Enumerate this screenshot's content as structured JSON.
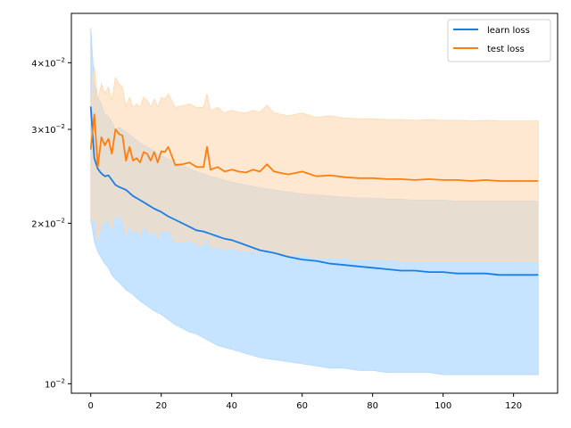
{
  "chart_data": {
    "type": "line",
    "title": "",
    "xlabel": "",
    "ylabel": "",
    "xlim": [
      -5.5,
      132.5
    ],
    "ylim": [
      0.0096,
      0.0495
    ],
    "yscale": "log",
    "grid": false,
    "legend_position": "top-right",
    "xticks": [
      0,
      20,
      40,
      60,
      80,
      100,
      120
    ],
    "xtick_labels": [
      "0",
      "20",
      "40",
      "60",
      "80",
      "100",
      "120"
    ],
    "yticks": [
      0.01,
      0.02,
      0.03,
      0.04
    ],
    "ytick_base": [
      "10",
      "2×10",
      "3×10",
      "4×10"
    ],
    "ytick_exp": [
      "−2",
      "−2",
      "−2",
      "−2"
    ],
    "series": [
      {
        "name": "learn loss",
        "color": "#1f77b4",
        "line_color": "#1a7ee6",
        "band_color": "#b3d9ff",
        "x": [
          0,
          1,
          2,
          3,
          4,
          5,
          6,
          7,
          8,
          10,
          12,
          14,
          16,
          18,
          20,
          22,
          24,
          26,
          28,
          30,
          32,
          34,
          36,
          38,
          40,
          44,
          48,
          52,
          56,
          60,
          64,
          68,
          72,
          76,
          80,
          84,
          88,
          92,
          96,
          100,
          104,
          108,
          112,
          116,
          120,
          124,
          127
        ],
        "y": [
          0.0331,
          0.0265,
          0.0253,
          0.0248,
          0.0245,
          0.0246,
          0.0241,
          0.0236,
          0.0234,
          0.0231,
          0.0225,
          0.0221,
          0.0217,
          0.0213,
          0.021,
          0.0206,
          0.0203,
          0.02,
          0.0197,
          0.0194,
          0.0193,
          0.0191,
          0.0189,
          0.0187,
          0.0186,
          0.0182,
          0.0178,
          0.0176,
          0.0173,
          0.0171,
          0.017,
          0.0168,
          0.0167,
          0.0166,
          0.0165,
          0.0164,
          0.0163,
          0.0163,
          0.0162,
          0.0162,
          0.0161,
          0.0161,
          0.0161,
          0.016,
          0.016,
          0.016,
          0.016
        ],
        "y_low": [
          0.0205,
          0.0185,
          0.0177,
          0.0172,
          0.0168,
          0.0165,
          0.016,
          0.0157,
          0.0155,
          0.015,
          0.0147,
          0.0143,
          0.014,
          0.0137,
          0.0135,
          0.0132,
          0.0129,
          0.0127,
          0.0125,
          0.0124,
          0.0122,
          0.012,
          0.0118,
          0.0117,
          0.0116,
          0.0114,
          0.0112,
          0.0111,
          0.011,
          0.0109,
          0.0108,
          0.0107,
          0.0107,
          0.0106,
          0.0106,
          0.0105,
          0.0105,
          0.0105,
          0.0105,
          0.0104,
          0.0104,
          0.0104,
          0.0104,
          0.0104,
          0.0104,
          0.0104,
          0.0104
        ],
        "y_high": [
          0.0465,
          0.0365,
          0.0345,
          0.0335,
          0.032,
          0.0318,
          0.031,
          0.03,
          0.0303,
          0.0297,
          0.029,
          0.0283,
          0.0278,
          0.0273,
          0.0268,
          0.0264,
          0.026,
          0.0257,
          0.0253,
          0.025,
          0.0248,
          0.0245,
          0.0243,
          0.0241,
          0.0239,
          0.0236,
          0.0233,
          0.0231,
          0.0229,
          0.0227,
          0.0226,
          0.0225,
          0.0224,
          0.0223,
          0.0223,
          0.0222,
          0.0222,
          0.0221,
          0.0221,
          0.0221,
          0.022,
          0.022,
          0.022,
          0.022,
          0.022,
          0.022,
          0.022
        ]
      },
      {
        "name": "test loss",
        "color": "#ff7f0e",
        "line_color": "#ff7f0e",
        "band_color": "#ffd9b3",
        "x": [
          0,
          1,
          2,
          3,
          4,
          5,
          6,
          7,
          8,
          9,
          10,
          11,
          12,
          13,
          14,
          15,
          16,
          17,
          18,
          19,
          20,
          21,
          22,
          24,
          26,
          28,
          30,
          32,
          33,
          34,
          36,
          38,
          40,
          42,
          44,
          46,
          48,
          50,
          52,
          56,
          60,
          64,
          68,
          72,
          76,
          80,
          84,
          88,
          92,
          96,
          100,
          104,
          108,
          112,
          116,
          120,
          124,
          127
        ],
        "y": [
          0.0275,
          0.032,
          0.0255,
          0.029,
          0.028,
          0.0288,
          0.027,
          0.03,
          0.0294,
          0.0292,
          0.0262,
          0.0278,
          0.0262,
          0.0265,
          0.026,
          0.0272,
          0.027,
          0.0262,
          0.0272,
          0.026,
          0.0273,
          0.0272,
          0.0278,
          0.0257,
          0.0258,
          0.026,
          0.0255,
          0.0255,
          0.0278,
          0.0252,
          0.0255,
          0.025,
          0.0252,
          0.025,
          0.0249,
          0.0252,
          0.025,
          0.0258,
          0.025,
          0.0247,
          0.025,
          0.0245,
          0.0246,
          0.0244,
          0.0243,
          0.0243,
          0.0242,
          0.0242,
          0.0241,
          0.0242,
          0.0241,
          0.0241,
          0.024,
          0.0241,
          0.024,
          0.024,
          0.024,
          0.024
        ],
        "y_low": [
          0.02,
          0.021,
          0.0185,
          0.02,
          0.02,
          0.0205,
          0.0195,
          0.021,
          0.0205,
          0.0205,
          0.019,
          0.02,
          0.0192,
          0.0195,
          0.019,
          0.0197,
          0.0195,
          0.019,
          0.0195,
          0.0188,
          0.0195,
          0.0193,
          0.0195,
          0.0185,
          0.0185,
          0.0186,
          0.0183,
          0.0182,
          0.019,
          0.018,
          0.0181,
          0.0178,
          0.018,
          0.0178,
          0.0177,
          0.0178,
          0.0176,
          0.018,
          0.0175,
          0.0174,
          0.0175,
          0.0172,
          0.0173,
          0.0172,
          0.0171,
          0.0171,
          0.0171,
          0.017,
          0.017,
          0.017,
          0.017,
          0.017,
          0.017,
          0.017,
          0.017,
          0.017,
          0.017,
          0.017
        ],
        "y_high": [
          0.033,
          0.0395,
          0.034,
          0.0365,
          0.035,
          0.036,
          0.034,
          0.0375,
          0.0365,
          0.036,
          0.033,
          0.0345,
          0.033,
          0.0335,
          0.033,
          0.0345,
          0.034,
          0.033,
          0.0342,
          0.033,
          0.0345,
          0.0342,
          0.035,
          0.033,
          0.0332,
          0.0335,
          0.033,
          0.033,
          0.035,
          0.0325,
          0.033,
          0.0322,
          0.0326,
          0.0323,
          0.0322,
          0.0326,
          0.0323,
          0.0333,
          0.0322,
          0.0318,
          0.0322,
          0.0316,
          0.0318,
          0.0315,
          0.0314,
          0.0314,
          0.0313,
          0.0313,
          0.0312,
          0.0313,
          0.0312,
          0.0312,
          0.0311,
          0.0312,
          0.0311,
          0.0311,
          0.0311,
          0.0311
        ]
      }
    ]
  }
}
